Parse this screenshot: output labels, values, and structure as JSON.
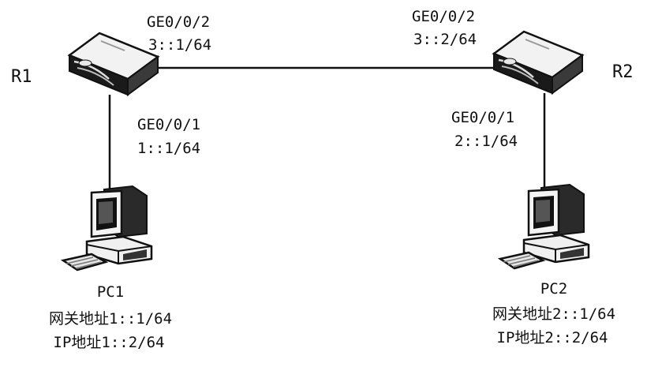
{
  "routers": {
    "r1": {
      "name": "R1"
    },
    "r2": {
      "name": "R2"
    }
  },
  "interfaces": {
    "r1_ge002": {
      "port": "GE0/0/2",
      "address": "3::1/64"
    },
    "r2_ge002": {
      "port": "GE0/0/2",
      "address": "3::2/64"
    },
    "r1_ge001": {
      "port": "GE0/0/1",
      "address": "1::1/64"
    },
    "r2_ge001": {
      "port": "GE0/0/1",
      "address": "2::1/64"
    }
  },
  "pcs": {
    "pc1": {
      "name": "PC1",
      "gateway": "网关地址1::1/64",
      "ip": "IP地址1::2/64"
    },
    "pc2": {
      "name": "PC2",
      "gateway": "网关地址2::1/64",
      "ip": "IP地址2::2/64"
    }
  },
  "icons": {
    "router": "router-icon",
    "pc": "computer-icon"
  },
  "colors": {
    "line": "#111111",
    "background": "#ffffff"
  }
}
